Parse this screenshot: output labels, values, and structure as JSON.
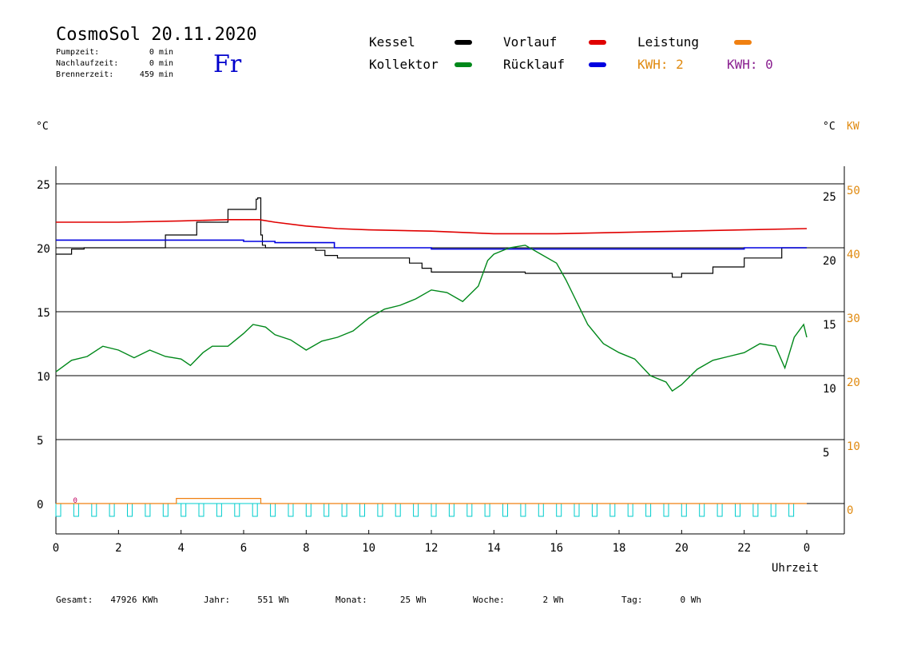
{
  "header": {
    "title": "CosmoSol 20.11.2020",
    "day": "Fr",
    "stats": [
      {
        "label": "Pumpzeit:",
        "value": "0 min"
      },
      {
        "label": "Nachlaufzeit:",
        "value": "0 min"
      },
      {
        "label": "Brennerzeit:",
        "value": "459 min"
      }
    ]
  },
  "legend": {
    "items": [
      {
        "label": "Kessel",
        "color": "#000000"
      },
      {
        "label": "Vorlauf",
        "color": "#e00000"
      },
      {
        "label": "Leistung",
        "color": "#f08010"
      },
      {
        "label": "Kollektor",
        "color": "#00881a"
      },
      {
        "label": "Rücklauf",
        "color": "#0000e0"
      }
    ],
    "kwh_left": {
      "text": "KWH: 2",
      "color": "#e08a10"
    },
    "kwh_right": {
      "text": "KWH: 0",
      "color": "#8a2090"
    }
  },
  "axes": {
    "left_unit": "°C",
    "right_unit_c": "°C",
    "right_unit_kw": "KW",
    "xlabel": "Uhrzeit"
  },
  "footer": [
    {
      "label": "Gesamt:",
      "value": "47926 KWh"
    },
    {
      "label": "Jahr:",
      "value": "551 Wh"
    },
    {
      "label": "Monat:",
      "value": "25 Wh"
    },
    {
      "label": "Woche:",
      "value": "2 Wh"
    },
    {
      "label": "Tag:",
      "value": "0 Wh"
    }
  ],
  "chart_data": {
    "type": "line",
    "x_range": [
      0,
      24
    ],
    "x_ticks": [
      "0",
      "2",
      "4",
      "6",
      "8",
      "10",
      "12",
      "14",
      "16",
      "18",
      "20",
      "22",
      "0"
    ],
    "y_left_range": [
      -2,
      26.5
    ],
    "y_left_ticks": [
      "0",
      "5",
      "10",
      "15",
      "20",
      "25"
    ],
    "y_right_c_ticks": [
      "5",
      "10",
      "15",
      "20",
      "25"
    ],
    "y_right_kw_ticks": [
      "0",
      "10",
      "20",
      "30",
      "40",
      "50"
    ],
    "grid": true,
    "series": [
      {
        "name": "Kessel",
        "color": "#000000",
        "x": [
          0,
          0.5,
          0.9,
          2.6,
          3.5,
          4.5,
          5.5,
          6.4,
          6.45,
          6.55,
          6.6,
          6.7,
          7.0,
          8.0,
          8.3,
          8.6,
          9.0,
          10.5,
          11.3,
          11.7,
          12.0,
          15.0,
          16.0,
          17.5,
          19.6,
          19.7,
          20.0,
          21.0,
          22.0,
          23.2,
          24.0
        ],
        "y": [
          19.5,
          19.9,
          20.0,
          20.0,
          21.0,
          22.0,
          23.0,
          23.8,
          23.9,
          21.0,
          20.2,
          20.0,
          20.0,
          20.0,
          19.8,
          19.4,
          19.2,
          19.2,
          18.8,
          18.4,
          18.1,
          18.0,
          18.0,
          18.0,
          18.0,
          17.7,
          18.0,
          18.5,
          19.2,
          20.0,
          20.0
        ]
      },
      {
        "name": "Vorlauf",
        "color": "#e00000",
        "x": [
          0,
          2,
          4,
          5.5,
          6.5,
          7.0,
          8.0,
          9.0,
          10.0,
          12.0,
          14.0,
          16.0,
          18.0,
          20.0,
          22.0,
          24.0
        ],
        "y": [
          22.0,
          22.0,
          22.1,
          22.2,
          22.2,
          22.0,
          21.7,
          21.5,
          21.4,
          21.3,
          21.1,
          21.1,
          21.2,
          21.3,
          21.4,
          21.5
        ]
      },
      {
        "name": "Rücklauf",
        "color": "#0000e0",
        "x": [
          0,
          3.0,
          4.0,
          6.0,
          7.0,
          8.0,
          8.8,
          8.9,
          10.0,
          12.0,
          14.0,
          16.0,
          18.0,
          20.0,
          22.0,
          24.0
        ],
        "y": [
          20.6,
          20.6,
          20.6,
          20.5,
          20.4,
          20.4,
          20.4,
          20.0,
          20.0,
          19.9,
          19.9,
          19.9,
          19.9,
          19.9,
          20.0,
          20.0
        ]
      },
      {
        "name": "Kollektor",
        "color": "#00881a",
        "x": [
          0,
          0.5,
          1.0,
          1.5,
          2.0,
          2.5,
          3.0,
          3.5,
          4.0,
          4.3,
          4.7,
          5.0,
          5.5,
          6.0,
          6.3,
          6.7,
          7.0,
          7.5,
          8.0,
          8.5,
          9.0,
          9.5,
          10.0,
          10.5,
          11.0,
          11.5,
          12.0,
          12.5,
          13.0,
          13.5,
          13.8,
          14.0,
          14.5,
          15.0,
          15.5,
          16.0,
          16.3,
          16.6,
          17.0,
          17.5,
          18.0,
          18.5,
          19.0,
          19.5,
          19.7,
          20.0,
          20.5,
          21.0,
          21.5,
          22.0,
          22.5,
          23.0,
          23.3,
          23.6,
          23.9,
          24.0
        ],
        "y": [
          10.3,
          11.2,
          11.5,
          12.3,
          12.0,
          11.4,
          12.0,
          11.5,
          11.3,
          10.8,
          11.8,
          12.3,
          12.3,
          13.3,
          14.0,
          13.8,
          13.2,
          12.8,
          12.0,
          12.7,
          13.0,
          13.5,
          14.5,
          15.2,
          15.5,
          16.0,
          16.7,
          16.5,
          15.8,
          17.0,
          19.0,
          19.5,
          20.0,
          20.2,
          19.5,
          18.8,
          17.5,
          16.0,
          14.0,
          12.5,
          11.8,
          11.3,
          10.0,
          9.5,
          8.8,
          9.3,
          10.5,
          11.2,
          11.5,
          11.8,
          12.5,
          12.3,
          10.6,
          13.0,
          14.0,
          13.0
        ]
      },
      {
        "name": "Leistung",
        "color": "#f08010",
        "x": [
          0,
          3.8,
          3.85,
          6.5,
          6.55,
          24.0
        ],
        "y": [
          0,
          0,
          0.4,
          0.4,
          0,
          0
        ]
      }
    ],
    "status_bar": {
      "color": "#00cccc",
      "pulses": 42
    }
  }
}
